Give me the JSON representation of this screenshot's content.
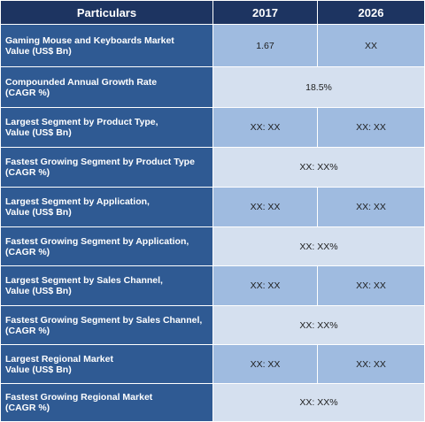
{
  "header": {
    "particulars": "Particulars",
    "col_2017": "2017",
    "col_2026": "2026"
  },
  "rows": [
    {
      "label1": "Gaming Mouse and Keyboards  Market",
      "label2": "Value (US$ Bn)",
      "v2017": "1.67",
      "v2026": "XX"
    },
    {
      "label1": "Compounded Annual Growth Rate",
      "label2": "(CAGR %)",
      "merged": "18.5%"
    },
    {
      "label1": "Largest Segment by Product Type,",
      "label2": "Value (US$ Bn)",
      "v2017": "XX: XX",
      "v2026": "XX:  XX"
    },
    {
      "label1": "Fastest Growing Segment by Product Type",
      "label2": "(CAGR %)",
      "merged": "XX:  XX%"
    },
    {
      "label1": "Largest Segment by Application,",
      "label2": "Value (US$ Bn)",
      "v2017": "XX: XX",
      "v2026": "XX:  XX"
    },
    {
      "label1": "Fastest Growing Segment by Application,",
      "label2": "(CAGR %)",
      "merged": "XX:  XX%"
    },
    {
      "label1": "Largest Segment by Sales Channel,",
      "label2": "Value (US$ Bn)",
      "v2017": "XX: XX",
      "v2026": "XX:  XX"
    },
    {
      "label1": "Fastest Growing Segment by Sales Channel,",
      "label2": "(CAGR %)",
      "merged": "XX:  XX%"
    },
    {
      "label1": "Largest Regional Market",
      "label2": "Value (US$ Bn)",
      "v2017": "XX: XX",
      "v2026": "XX: XX"
    },
    {
      "label1": "Fastest Growing Regional Market",
      "label2": "(CAGR %)",
      "merged": "XX: XX%"
    }
  ]
}
